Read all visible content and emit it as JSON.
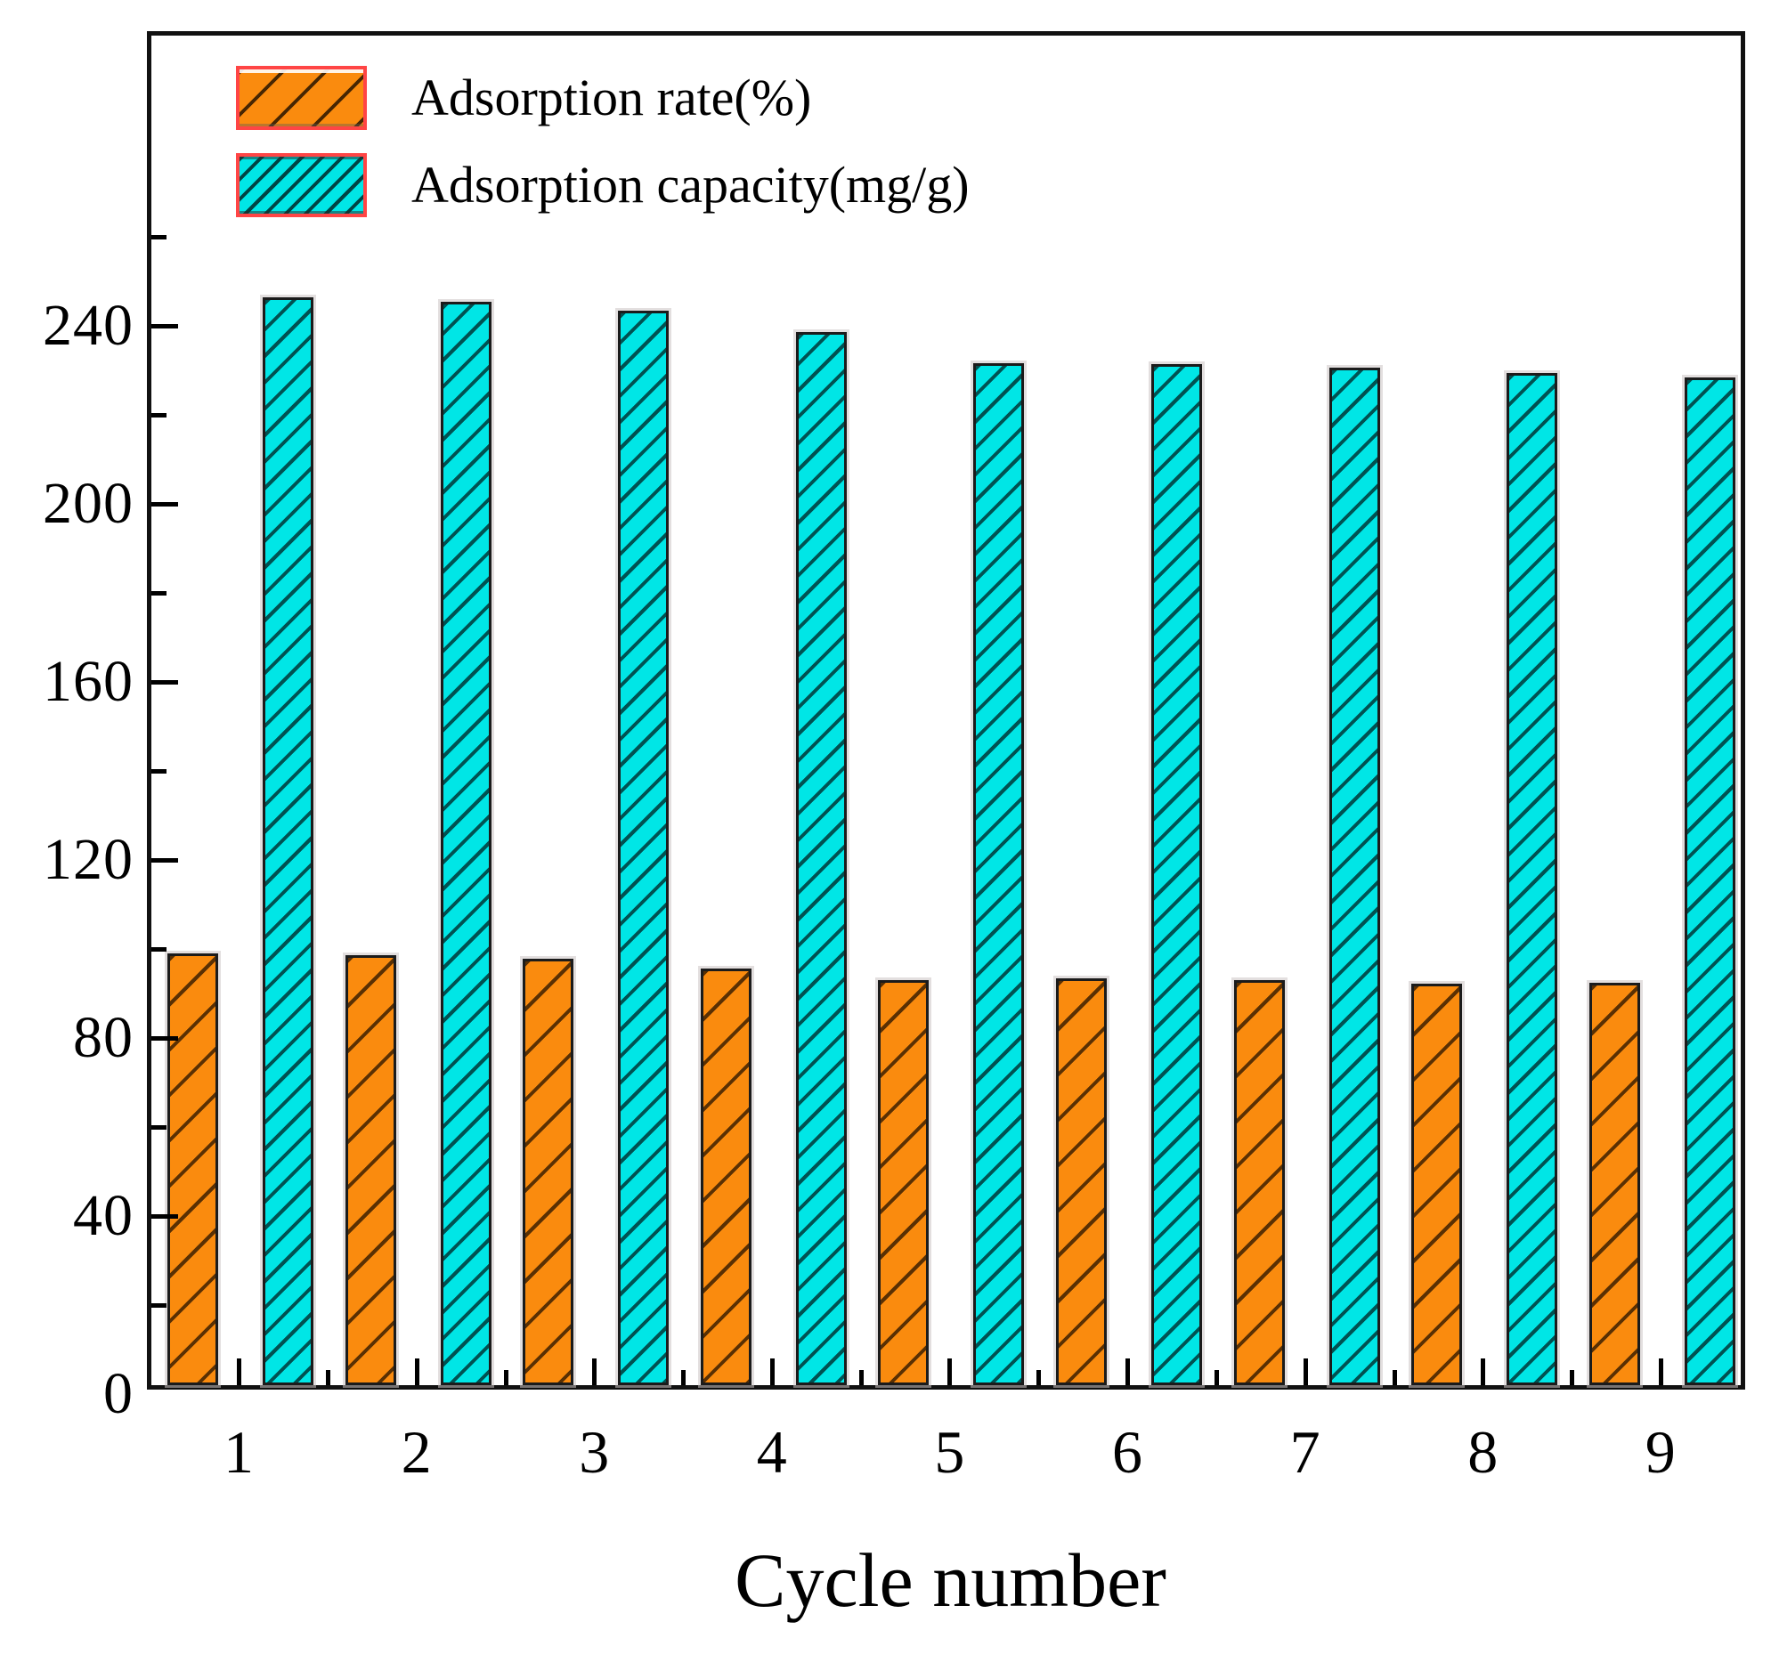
{
  "figure": {
    "background": "#ffffff",
    "frame_color": "#111111"
  },
  "legend": {
    "position": "top-left",
    "swatch_border_color": "#FF4545",
    "items": [
      {
        "label": "Adsorption rate(%)",
        "series": "rate",
        "color": "#FA8B0E",
        "hatch": "diagonal-sparse"
      },
      {
        "label": "Adsorption capacity(mg/g)",
        "series": "capacity",
        "color": "#00E6E6",
        "hatch": "diagonal-dense"
      }
    ]
  },
  "chart_data": {
    "type": "bar",
    "title": "",
    "xlabel": "Cycle number",
    "ylabel": "",
    "categories": [
      "1",
      "2",
      "3",
      "4",
      "5",
      "6",
      "7",
      "8",
      "9"
    ],
    "series": [
      {
        "name": "Adsorption rate(%)",
        "color": "#FA8B0E",
        "values": [
          97.0,
          96.6,
          95.8,
          93.6,
          91.0,
          91.4,
          91.0,
          90.2,
          90.4
        ]
      },
      {
        "name": "Adsorption capacity(mg/g)",
        "color": "#00E6E6",
        "values": [
          244.4,
          243.4,
          241.4,
          236.6,
          229.6,
          229.4,
          228.6,
          227.4,
          226.4
        ]
      }
    ],
    "ylim": [
      0,
      305.2
    ],
    "yticks": [
      {
        "v": 0,
        "label": "0"
      },
      {
        "v": 40,
        "label": "40"
      },
      {
        "v": 80,
        "label": "80"
      },
      {
        "v": 120,
        "label": "120"
      },
      {
        "v": 160,
        "label": "160"
      },
      {
        "v": 200,
        "label": "200"
      },
      {
        "v": 240,
        "label": "240"
      }
    ],
    "yticks_minor": [
      20,
      60,
      100,
      140,
      180,
      220,
      260
    ],
    "grid": false,
    "legend_position": "top-left"
  }
}
